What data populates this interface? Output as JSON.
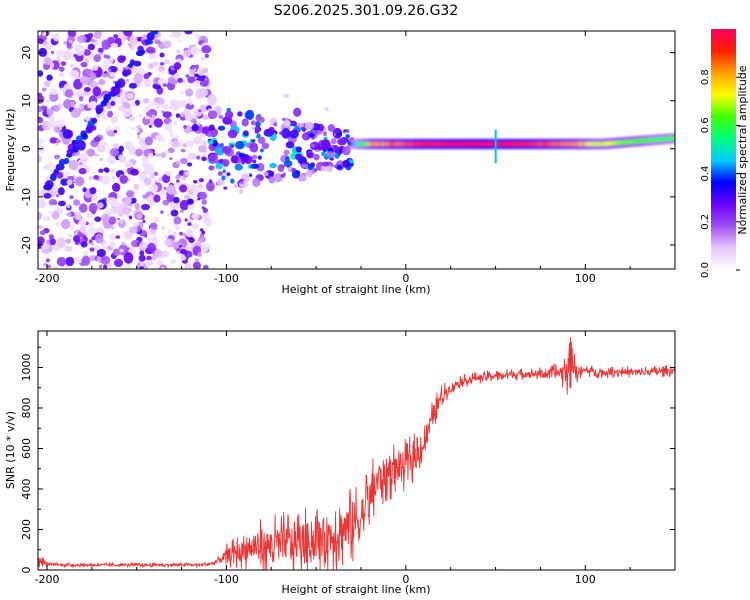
{
  "title": "S206.2025.301.09.26.G32",
  "chart_data": [
    {
      "type": "heatmap",
      "name": "spectrogram",
      "xlabel": "Height of straight line (km)",
      "ylabel": "Frequency (Hz)",
      "xlim": [
        -205,
        150
      ],
      "ylim": [
        -25,
        24.5
      ],
      "xticks": [
        -200,
        -100,
        0,
        100
      ],
      "xtick_labels": [
        "-200",
        "-100",
        "0",
        "100"
      ],
      "yticks": [
        -20,
        -10,
        0,
        10,
        20
      ],
      "ytick_labels": [
        "-20",
        "-10",
        "0",
        "10",
        "20"
      ],
      "colorbar": {
        "label": "Normalized spectral amplitude",
        "range": [
          0,
          1
        ],
        "ticks": [
          0.0,
          0.2,
          0.4,
          0.6,
          0.8
        ],
        "tick_labels": [
          "0.0",
          "0.2",
          "0.4",
          "0.6",
          "0.8"
        ],
        "stops": [
          "#ffffff",
          "#e8c8ff",
          "#a050f0",
          "#6a00ff",
          "#0000ff",
          "#00ccff",
          "#00ff80",
          "#40ff00",
          "#ffff00",
          "#ffa000",
          "#ff2000",
          "#ff0060"
        ]
      },
      "regions": {
        "noise": {
          "x_range": [
            -205,
            -110
          ],
          "amplitude": "0.05-0.35"
        },
        "scatter": {
          "x_range": [
            -110,
            -30
          ],
          "freq_range": [
            -12,
            10
          ],
          "amplitude": "0.1-0.5"
        },
        "signal_line": {
          "x_range": [
            -30,
            150
          ],
          "frequency": [
            1.0,
            1.5
          ],
          "amplitude_peak": 0.97,
          "core_x_range": [
            -20,
            100
          ]
        },
        "diagonal_streak": {
          "from": [
            -200,
            -8
          ],
          "to": [
            -140,
            24
          ]
        }
      },
      "colors": {
        "axis": "#000000",
        "background": "#ffffff"
      }
    },
    {
      "type": "line",
      "name": "snr",
      "xlabel": "Height of straight line (km)",
      "ylabel": "SNR (10 * v/v)",
      "xlim": [
        -205,
        150
      ],
      "ylim": [
        0,
        1180
      ],
      "xticks": [
        -200,
        -100,
        0,
        100
      ],
      "xtick_labels": [
        "-200",
        "-100",
        "0",
        "100"
      ],
      "yticks": [
        0,
        200,
        400,
        600,
        800,
        1000
      ],
      "ytick_labels": [
        "0",
        "200",
        "400",
        "600",
        "800",
        "1000"
      ],
      "series": [
        {
          "name": "SNR",
          "color": "#ee3333",
          "x": [
            -205,
            -200,
            -190,
            -170,
            -150,
            -130,
            -115,
            -108,
            -100,
            -90,
            -80,
            -70,
            -60,
            -50,
            -40,
            -30,
            -25,
            -20,
            -15,
            -10,
            -5,
            0,
            5,
            10,
            15,
            20,
            25,
            30,
            40,
            50,
            60,
            70,
            80,
            85,
            90,
            92,
            95,
            100,
            110,
            120,
            130,
            140,
            150
          ],
          "y": [
            50,
            30,
            25,
            25,
            25,
            25,
            25,
            30,
            70,
            100,
            120,
            130,
            140,
            150,
            180,
            220,
            260,
            350,
            450,
            480,
            500,
            520,
            560,
            620,
            760,
            860,
            900,
            930,
            950,
            960,
            965,
            970,
            970,
            975,
            980,
            1080,
            980,
            985,
            975,
            980,
            975,
            980,
            985
          ],
          "noise_amp": [
            40,
            10,
            10,
            10,
            10,
            10,
            10,
            15,
            60,
            100,
            140,
            160,
            170,
            180,
            200,
            220,
            200,
            180,
            160,
            150,
            140,
            130,
            120,
            100,
            80,
            60,
            40,
            35,
            30,
            30,
            30,
            30,
            35,
            60,
            120,
            200,
            60,
            30,
            30,
            30,
            30,
            30,
            30
          ]
        }
      ],
      "colors": {
        "axis": "#000000",
        "background": "#ffffff"
      }
    }
  ]
}
